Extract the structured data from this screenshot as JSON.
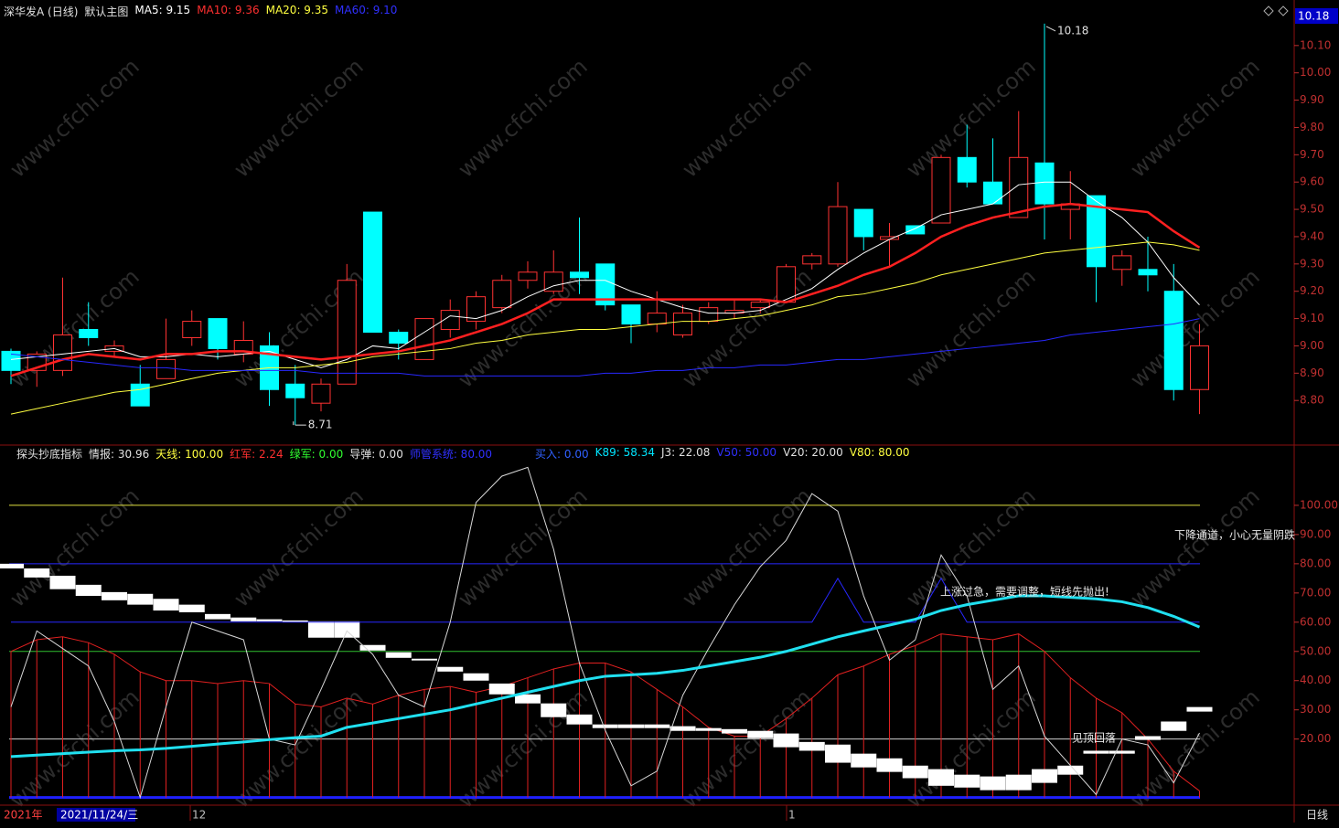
{
  "header": {
    "items": [
      {
        "text": "深华发A (日线)",
        "color": "#e0e0e0"
      },
      {
        "text": "默认主图",
        "color": "#e0e0e0"
      },
      {
        "text": "MA5: 9.15",
        "color": "#ffffff"
      },
      {
        "text": "MA10: 9.36",
        "color": "#ff3030"
      },
      {
        "text": "MA20: 9.35",
        "color": "#ffff40"
      },
      {
        "text": "MA60: 9.10",
        "color": "#3030ff"
      }
    ]
  },
  "chart_data": [
    {
      "type": "candlestick",
      "ylim": [
        8.64,
        10.24
      ],
      "yticks": [
        {
          "value": 8.8,
          "label": "8.80"
        },
        {
          "value": 8.9,
          "label": "8.90"
        },
        {
          "value": 9.0,
          "label": "9.00"
        },
        {
          "value": 9.1,
          "label": "9.10"
        },
        {
          "value": 9.2,
          "label": "9.20"
        },
        {
          "value": 9.3,
          "label": "9.30"
        },
        {
          "value": 9.4,
          "label": "9.40"
        },
        {
          "value": 9.5,
          "label": "9.50"
        },
        {
          "value": 9.6,
          "label": "9.60"
        },
        {
          "value": 9.7,
          "label": "9.70"
        },
        {
          "value": 9.8,
          "label": "9.80"
        },
        {
          "value": 9.9,
          "label": "9.90"
        },
        {
          "value": 10.0,
          "label": "10.00"
        },
        {
          "value": 10.1,
          "label": "10.10"
        }
      ],
      "up_color": "#ff3232",
      "down_color": "#00ffff",
      "open": [
        8.98,
        8.91,
        8.91,
        9.06,
        8.98,
        8.86,
        8.88,
        9.03,
        9.1,
        8.97,
        9.0,
        8.86,
        8.79,
        8.86,
        9.49,
        9.05,
        8.95,
        9.06,
        9.09,
        9.14,
        9.24,
        9.2,
        9.27,
        9.3,
        9.15,
        9.08,
        9.04,
        9.09,
        9.12,
        9.14,
        9.16,
        9.3,
        9.3,
        9.5,
        9.39,
        9.44,
        9.45,
        9.69,
        9.6,
        9.47,
        9.67,
        9.5,
        9.55,
        9.28,
        9.28,
        9.2,
        8.84
      ],
      "high": [
        8.99,
        8.98,
        9.25,
        9.16,
        9.02,
        8.93,
        9.1,
        9.13,
        9.1,
        9.09,
        9.05,
        8.93,
        8.88,
        9.3,
        9.49,
        9.06,
        9.1,
        9.17,
        9.2,
        9.26,
        9.31,
        9.35,
        9.47,
        9.3,
        9.15,
        9.2,
        9.15,
        9.16,
        9.17,
        9.17,
        9.3,
        9.34,
        9.6,
        9.5,
        9.45,
        9.44,
        9.7,
        9.81,
        9.76,
        9.86,
        10.18,
        9.64,
        9.55,
        9.35,
        9.4,
        9.3,
        9.08
      ],
      "low": [
        8.86,
        8.85,
        8.89,
        9.0,
        8.96,
        8.78,
        8.88,
        9.0,
        8.95,
        8.94,
        8.78,
        8.71,
        8.76,
        8.86,
        9.05,
        8.95,
        8.95,
        9.03,
        9.06,
        9.12,
        9.21,
        9.19,
        9.19,
        9.13,
        9.01,
        9.05,
        9.03,
        9.08,
        9.1,
        9.12,
        9.16,
        9.28,
        9.29,
        9.35,
        9.29,
        9.41,
        9.45,
        9.58,
        9.52,
        9.47,
        9.39,
        9.39,
        9.16,
        9.22,
        9.2,
        8.8,
        8.75
      ],
      "close": [
        8.91,
        8.97,
        9.04,
        9.03,
        9.0,
        8.78,
        8.95,
        9.09,
        8.99,
        9.02,
        8.84,
        8.81,
        8.86,
        9.24,
        9.05,
        9.01,
        9.1,
        9.13,
        9.18,
        9.24,
        9.27,
        9.27,
        9.25,
        9.15,
        9.08,
        9.12,
        9.12,
        9.14,
        9.13,
        9.16,
        9.29,
        9.33,
        9.51,
        9.4,
        9.4,
        9.41,
        9.69,
        9.6,
        9.52,
        9.69,
        9.52,
        9.52,
        9.29,
        9.33,
        9.26,
        8.84,
        9.0
      ],
      "series": [
        {
          "color": "#ffffff",
          "width": 1,
          "values": [
            8.95,
            8.96,
            8.97,
            8.98,
            8.99,
            8.96,
            8.96,
            8.97,
            8.96,
            8.97,
            8.98,
            8.95,
            8.92,
            8.95,
            9.0,
            8.99,
            9.05,
            9.11,
            9.1,
            9.13,
            9.18,
            9.22,
            9.24,
            9.24,
            9.2,
            9.17,
            9.14,
            9.12,
            9.12,
            9.13,
            9.17,
            9.21,
            9.28,
            9.34,
            9.39,
            9.43,
            9.48,
            9.5,
            9.52,
            9.59,
            9.6,
            9.6,
            9.53,
            9.47,
            9.38,
            9.25,
            9.15
          ]
        },
        {
          "color": "#ff2020",
          "width": 2.5,
          "values": [
            8.89,
            8.92,
            8.95,
            8.97,
            8.96,
            8.95,
            8.97,
            8.97,
            8.98,
            8.98,
            8.97,
            8.96,
            8.95,
            8.96,
            8.97,
            8.98,
            9.0,
            9.02,
            9.05,
            9.08,
            9.12,
            9.17,
            9.17,
            9.17,
            9.17,
            9.17,
            9.17,
            9.17,
            9.17,
            9.17,
            9.16,
            9.19,
            9.22,
            9.26,
            9.29,
            9.34,
            9.4,
            9.44,
            9.47,
            9.49,
            9.51,
            9.52,
            9.51,
            9.5,
            9.49,
            9.42,
            9.36
          ]
        },
        {
          "color": "#ffff40",
          "width": 1,
          "values": [
            8.75,
            8.77,
            8.79,
            8.81,
            8.83,
            8.84,
            8.86,
            8.88,
            8.9,
            8.91,
            8.92,
            8.92,
            8.93,
            8.94,
            8.96,
            8.97,
            8.98,
            8.99,
            9.01,
            9.02,
            9.04,
            9.05,
            9.06,
            9.06,
            9.07,
            9.08,
            9.09,
            9.09,
            9.1,
            9.11,
            9.13,
            9.15,
            9.18,
            9.19,
            9.21,
            9.23,
            9.26,
            9.28,
            9.3,
            9.32,
            9.34,
            9.35,
            9.36,
            9.37,
            9.38,
            9.37,
            9.35
          ]
        },
        {
          "color": "#2828ff",
          "width": 1,
          "values": [
            8.97,
            8.96,
            8.95,
            8.94,
            8.93,
            8.92,
            8.92,
            8.91,
            8.91,
            8.91,
            8.91,
            8.91,
            8.9,
            8.9,
            8.9,
            8.9,
            8.89,
            8.89,
            8.89,
            8.89,
            8.89,
            8.89,
            8.89,
            8.9,
            8.9,
            8.91,
            8.91,
            8.92,
            8.92,
            8.93,
            8.93,
            8.94,
            8.95,
            8.95,
            8.96,
            8.97,
            8.98,
            8.99,
            9.0,
            9.01,
            9.02,
            9.04,
            9.05,
            9.06,
            9.07,
            9.08,
            9.1
          ]
        }
      ],
      "max_label": {
        "value": 10.18,
        "label": "10.18"
      },
      "min_label": {
        "value": 8.71,
        "label": "8.71"
      }
    },
    {
      "type": "indicator",
      "header": [
        {
          "text": "探头抄底指标",
          "color": "#e0e0e0"
        },
        {
          "text": "情报: 30.96",
          "color": "#e0e0e0"
        },
        {
          "text": "天线: 100.00",
          "color": "#ffff40"
        },
        {
          "text": "红军: 2.24",
          "color": "#ff3030"
        },
        {
          "text": "绿军: 0.00",
          "color": "#30ff30"
        },
        {
          "text": "导弹: 0.00",
          "color": "#e0e0e0"
        },
        {
          "text": "师管系统: 80.00",
          "color": "#3030ff"
        },
        {
          "text": "买入: 0.00",
          "color": "#3060ff"
        },
        {
          "text": "K89: 58.34",
          "color": "#00e5ff"
        },
        {
          "text": "J3: 22.08",
          "color": "#e0e0e0"
        },
        {
          "text": "V50: 50.00",
          "color": "#3030ff"
        },
        {
          "text": "V20: 20.00",
          "color": "#e0e0e0"
        },
        {
          "text": "V80: 80.00",
          "color": "#ffff40"
        }
      ],
      "ylim": [
        -2,
        120
      ],
      "yticks": [
        {
          "value": 20,
          "label": "20.00"
        },
        {
          "value": 30,
          "label": "30.00"
        },
        {
          "value": 40,
          "label": "40.00"
        },
        {
          "value": 50,
          "label": "50.00"
        },
        {
          "value": 60,
          "label": "60.00"
        },
        {
          "value": 70,
          "label": "70.00"
        },
        {
          "value": 80,
          "label": "80.00"
        },
        {
          "value": 90,
          "label": "90.00"
        },
        {
          "value": 100,
          "label": "100.00"
        }
      ],
      "hlines": [
        {
          "value": 100,
          "color": "#e0e040",
          "width": 1
        },
        {
          "value": 80,
          "color": "#2828ff",
          "width": 1
        },
        {
          "value": 50,
          "color": "#30c030",
          "width": 1
        },
        {
          "value": 20,
          "color": "#d0d0d0",
          "width": 1
        },
        {
          "value": 0,
          "color": "#2020ff",
          "width": 3
        }
      ],
      "sticks": {
        "color": "#e02020",
        "values": [
          50,
          54,
          55,
          53,
          49,
          43,
          40,
          40,
          39,
          40,
          39,
          32,
          31,
          34,
          32,
          35,
          37,
          38,
          36,
          38,
          41,
          44,
          46,
          46,
          43,
          37,
          31,
          24,
          21,
          21,
          27,
          34,
          42,
          45,
          49,
          52,
          56,
          55,
          54,
          56,
          50,
          41,
          34,
          29,
          20,
          9,
          2.24
        ]
      },
      "blocks": {
        "color": "#ffffff",
        "low": [
          78.4,
          75.3,
          71.3,
          69,
          67.5,
          66,
          64,
          63.4,
          61,
          60.3,
          60.3,
          60,
          54.7,
          54.7,
          50.3,
          47.8,
          46.9,
          43.1,
          40,
          35.3,
          32.2,
          27.5,
          25,
          23.75,
          23.75,
          23.75,
          22.8,
          22.8,
          21.9,
          20.3,
          17.2,
          16,
          11.9,
          10.3,
          8.75,
          6.6,
          4,
          3.4,
          2.5,
          2.5,
          5,
          7.8,
          15,
          15,
          19.7,
          22.8,
          29.4
        ],
        "high": [
          80,
          78.4,
          75.9,
          72.8,
          70.3,
          69.7,
          68,
          66,
          62.8,
          61.6,
          61,
          60.6,
          60.3,
          60.3,
          52.2,
          49.7,
          47.5,
          44.7,
          42.5,
          39,
          35.3,
          32.2,
          28.4,
          25,
          25,
          25,
          24.4,
          23.75,
          23.4,
          22.8,
          21.9,
          19,
          18.1,
          15,
          13.4,
          10.9,
          9.7,
          7.8,
          7.2,
          7.8,
          9.7,
          10.9,
          16,
          16,
          21,
          26,
          30.96
        ]
      },
      "series": [
        {
          "color": "#2828ff",
          "width": 1,
          "values": [
            60,
            60,
            60,
            60,
            60,
            60,
            60,
            60,
            60,
            60,
            60,
            60,
            60,
            60,
            60,
            60,
            60,
            60,
            60,
            60,
            60,
            60,
            60,
            60,
            60,
            60,
            60,
            60,
            60,
            60,
            60,
            60,
            75,
            60,
            60,
            60,
            75,
            60,
            60,
            60,
            60,
            60,
            60,
            60,
            60,
            60,
            60
          ]
        },
        {
          "color": "#d8d8d8",
          "width": 1,
          "values": [
            31,
            57,
            51,
            45,
            26,
            0,
            31,
            60,
            57,
            54,
            20,
            18,
            37,
            57,
            49,
            35,
            31,
            60,
            101,
            110,
            113,
            85,
            46,
            23,
            4,
            9,
            35,
            51,
            66,
            79,
            88,
            104,
            98,
            69,
            47,
            54,
            83,
            69,
            37,
            45,
            21,
            11,
            1,
            20,
            18,
            5,
            22.08
          ]
        },
        {
          "color": "#20e0f0",
          "width": 3,
          "values": [
            14,
            14.5,
            15,
            15.5,
            16,
            16.3,
            16.8,
            17.5,
            18.3,
            19,
            19.8,
            20.5,
            21,
            24,
            25.5,
            27,
            28.5,
            30,
            32,
            34,
            36,
            38,
            40,
            41.5,
            42,
            42.5,
            43.5,
            45,
            46.5,
            48,
            50,
            52.5,
            55,
            57,
            59,
            61,
            64,
            66,
            67.5,
            69,
            69,
            68.5,
            68,
            67,
            65,
            62,
            58.34
          ]
        }
      ],
      "annotations": [
        {
          "text": "下降通道，小心无量阴跌"
        },
        {
          "text": "上涨过急，需要调整，短线先抛出!"
        },
        {
          "text": "见顶回落"
        }
      ]
    }
  ],
  "x_axis": {
    "labels": [
      "2021年",
      "2021/11/24/三",
      "12",
      "1"
    ],
    "period": "日线"
  },
  "watermark": "www.cfchi.com"
}
